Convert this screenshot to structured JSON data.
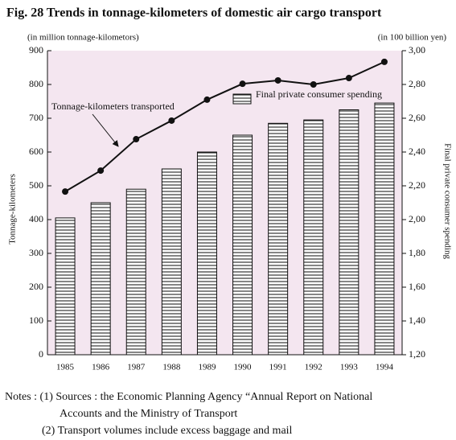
{
  "chart_data": {
    "type": "combo",
    "title": "Fig. 28 Trends in tonnage-kilometers of domestic air cargo transport",
    "y_unit": "(in million tonnage-kilometors)",
    "y2_unit": "(in 100 billion yen)",
    "ylabel": "Tonnage-kilometers",
    "y2label": "Final private consumer spending",
    "categories": [
      "1985",
      "1986",
      "1987",
      "1988",
      "1989",
      "1990",
      "1991",
      "1992",
      "1993",
      "1994"
    ],
    "series": [
      {
        "name": "Tonnage-kilometers transported",
        "type": "line",
        "axis": "y",
        "color": "#111111",
        "values": [
          483,
          545,
          638,
          693,
          755,
          802,
          812,
          800,
          819,
          867
        ]
      },
      {
        "name": "Final private consumer spending",
        "type": "bar",
        "axis": "y2",
        "color": "#111111",
        "values": [
          2.01,
          2.1,
          2.18,
          2.3,
          2.4,
          2.5,
          2.57,
          2.59,
          2.65,
          2.69
        ]
      }
    ],
    "ylim": [
      0,
      900
    ],
    "yticks": [
      0,
      100,
      200,
      300,
      400,
      500,
      600,
      700,
      800,
      900
    ],
    "y2lim": [
      1.2,
      3.0
    ],
    "y2ticks": [
      {
        "value": 1.2,
        "label": "1,20"
      },
      {
        "value": 1.4,
        "label": "1,40"
      },
      {
        "value": 1.6,
        "label": "1,60"
      },
      {
        "value": 1.8,
        "label": "1,80"
      },
      {
        "value": 2.0,
        "label": "2,00"
      },
      {
        "value": 2.2,
        "label": "2,20"
      },
      {
        "value": 2.4,
        "label": "2,40"
      },
      {
        "value": 2.6,
        "label": "2,60"
      },
      {
        "value": 2.8,
        "label": "2,80"
      },
      {
        "value": 3.0,
        "label": "3,00"
      }
    ],
    "grid": false,
    "notes": [
      "Notes : (1) Sources : the Economic Planning Agency “Annual Report on National",
      "Accounts and the Ministry of Transport",
      "(2) Transport volumes include excess baggage and mail"
    ]
  }
}
